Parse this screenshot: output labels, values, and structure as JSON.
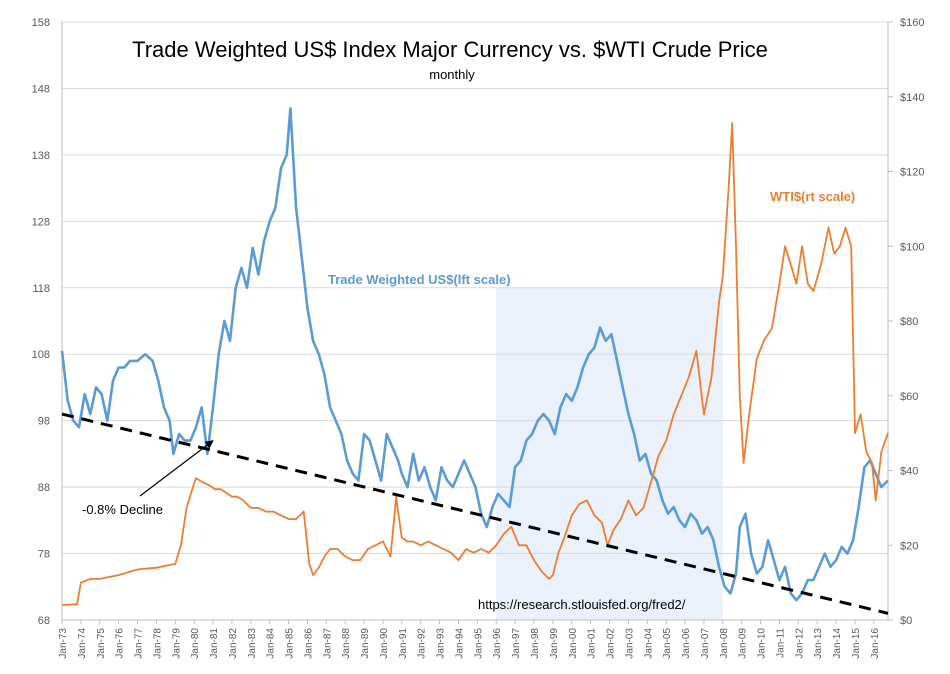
{
  "chart_data": {
    "type": "line",
    "title": "Trade Weighted US$ Index Major Currency vs. $WTI Crude Price",
    "subtitle": "monthly",
    "left_axis": {
      "ylim": [
        68,
        158
      ],
      "ticks": [
        "68",
        "78",
        "88",
        "98",
        "108",
        "118",
        "128",
        "138",
        "148",
        "158"
      ]
    },
    "right_axis": {
      "ylim": [
        0,
        160
      ],
      "ticks": [
        "$0",
        "$20",
        "$40",
        "$60",
        "$80",
        "$100",
        "$120",
        "$140",
        "$160"
      ]
    },
    "x_axis": {
      "xlim": [
        1973.0,
        2016.75
      ],
      "ticks": [
        "Jan-73",
        "Jan-74",
        "Jan-75",
        "Jan-76",
        "Jan-77",
        "Jan-78",
        "Jan-79",
        "Jan-80",
        "Jan-81",
        "Jan-82",
        "Jan-83",
        "Jan-84",
        "Jan-85",
        "Jan-86",
        "Jan-87",
        "Jan-88",
        "Jan-89",
        "Jan-90",
        "Jan-91",
        "Jan-92",
        "Jan-93",
        "Jan-94",
        "Jan-95",
        "Jan-96",
        "Jan-97",
        "Jan-98",
        "Jan-99",
        "Jan-00",
        "Jan-01",
        "Jan-02",
        "Jan-03",
        "Jan-04",
        "Jan-05",
        "Jan-06",
        "Jan-07",
        "Jan-08",
        "Jan-09",
        "Jan-10",
        "Jan-11",
        "Jan-12",
        "Jan-13",
        "Jan-14",
        "Jan-15",
        "Jan-16"
      ]
    },
    "grid": "horizontal",
    "shaded_region": {
      "x": [
        1996.0,
        2008.0
      ],
      "color": "#eaf1fa"
    },
    "trendline": {
      "axis": "left",
      "from": [
        1973.0,
        99.0
      ],
      "to": [
        2016.75,
        69.0
      ],
      "color": "#000000",
      "style": "dashed"
    },
    "series": [
      {
        "name": "Trade Weighted US$(lft scale)",
        "axis": "left",
        "color": "#5b9bd5",
        "x": [
          1973.0,
          1973.3,
          1973.6,
          1973.9,
          1974.2,
          1974.5,
          1974.8,
          1975.1,
          1975.4,
          1975.7,
          1976.0,
          1976.3,
          1976.6,
          1977.0,
          1977.4,
          1977.8,
          1978.1,
          1978.4,
          1978.7,
          1978.9,
          1979.2,
          1979.5,
          1979.8,
          1980.1,
          1980.4,
          1980.7,
          1981.0,
          1981.3,
          1981.6,
          1981.9,
          1982.2,
          1982.5,
          1982.8,
          1983.1,
          1983.4,
          1983.7,
          1984.0,
          1984.3,
          1984.6,
          1984.9,
          1985.1,
          1985.2,
          1985.4,
          1985.6,
          1985.8,
          1986.0,
          1986.3,
          1986.6,
          1986.9,
          1987.2,
          1987.5,
          1987.8,
          1988.1,
          1988.4,
          1988.7,
          1989.0,
          1989.3,
          1989.6,
          1989.9,
          1990.2,
          1990.5,
          1990.8,
          1991.0,
          1991.3,
          1991.6,
          1991.9,
          1992.2,
          1992.5,
          1992.8,
          1993.1,
          1993.4,
          1993.7,
          1994.0,
          1994.3,
          1994.6,
          1994.9,
          1995.2,
          1995.5,
          1995.8,
          1996.1,
          1996.4,
          1996.7,
          1997.0,
          1997.3,
          1997.6,
          1997.9,
          1998.2,
          1998.5,
          1998.8,
          1999.1,
          1999.4,
          1999.7,
          2000.0,
          2000.3,
          2000.6,
          2000.9,
          2001.2,
          2001.5,
          2001.8,
          2002.1,
          2002.4,
          2002.7,
          2003.0,
          2003.3,
          2003.6,
          2003.9,
          2004.2,
          2004.5,
          2004.8,
          2005.1,
          2005.4,
          2005.7,
          2006.0,
          2006.3,
          2006.6,
          2006.9,
          2007.2,
          2007.5,
          2007.8,
          2008.1,
          2008.4,
          2008.7,
          2008.9,
          2009.2,
          2009.5,
          2009.8,
          2010.1,
          2010.4,
          2010.7,
          2011.0,
          2011.3,
          2011.6,
          2011.9,
          2012.2,
          2012.5,
          2012.8,
          2013.1,
          2013.4,
          2013.7,
          2014.0,
          2014.3,
          2014.6,
          2014.9,
          2015.2,
          2015.5,
          2015.8,
          2016.1,
          2016.4,
          2016.75
        ],
        "y": [
          108.5,
          101,
          98,
          97,
          102,
          99,
          103,
          102,
          98,
          104,
          106,
          106,
          107,
          107,
          108,
          107,
          104,
          100,
          98,
          93,
          96,
          95,
          95,
          97,
          100,
          93,
          100,
          108,
          113,
          110,
          118,
          121,
          118,
          124,
          120,
          125,
          128,
          130,
          136,
          138,
          145,
          140,
          130,
          125,
          120,
          115,
          110,
          108,
          105,
          100,
          98,
          96,
          92,
          90,
          89,
          96,
          95,
          92,
          89,
          96,
          94,
          92,
          90,
          88,
          93,
          89,
          91,
          88,
          86,
          91,
          89,
          88,
          90,
          92,
          90,
          88,
          84,
          82,
          85,
          87,
          86,
          85,
          91,
          92,
          95,
          96,
          98,
          99,
          98,
          96,
          100,
          102,
          101,
          103,
          106,
          108,
          109,
          112,
          110,
          111,
          107,
          103,
          99,
          96,
          92,
          93,
          90,
          89,
          86,
          84,
          85,
          83,
          82,
          84,
          83,
          81,
          82,
          80,
          76,
          73,
          72,
          75,
          82,
          84,
          78,
          75,
          76,
          80,
          77,
          74,
          76,
          72,
          71,
          72,
          74,
          74,
          76,
          78,
          76,
          77,
          79,
          78,
          80,
          85,
          91,
          92,
          90,
          88,
          89
        ]
      },
      {
        "name": "WTI$(rt scale)",
        "axis": "right",
        "color": "#ed7d31",
        "x": [
          1973.0,
          1973.8,
          1974.0,
          1974.5,
          1975.0,
          1976.0,
          1977.0,
          1978.0,
          1978.5,
          1979.0,
          1979.3,
          1979.6,
          1979.9,
          1980.1,
          1980.4,
          1980.8,
          1981.1,
          1981.4,
          1981.7,
          1982.0,
          1982.3,
          1982.6,
          1983.0,
          1983.4,
          1983.8,
          1984.2,
          1984.6,
          1985.0,
          1985.4,
          1985.8,
          1986.1,
          1986.3,
          1986.6,
          1986.9,
          1987.2,
          1987.6,
          1988.0,
          1988.4,
          1988.8,
          1989.2,
          1989.6,
          1990.0,
          1990.4,
          1990.7,
          1990.8,
          1991.0,
          1991.3,
          1991.6,
          1992.0,
          1992.4,
          1992.8,
          1993.2,
          1993.6,
          1994.0,
          1994.4,
          1994.8,
          1995.2,
          1995.6,
          1996.0,
          1996.4,
          1996.8,
          1997.2,
          1997.6,
          1998.0,
          1998.4,
          1998.8,
          1999.0,
          1999.3,
          1999.6,
          2000.0,
          2000.4,
          2000.8,
          2001.2,
          2001.6,
          2001.9,
          2002.2,
          2002.6,
          2003.0,
          2003.4,
          2003.8,
          2004.2,
          2004.6,
          2005.0,
          2005.4,
          2005.8,
          2006.2,
          2006.6,
          2007.0,
          2007.4,
          2007.8,
          2008.0,
          2008.3,
          2008.5,
          2008.7,
          2008.9,
          2009.1,
          2009.4,
          2009.8,
          2010.2,
          2010.6,
          2011.0,
          2011.3,
          2011.6,
          2011.9,
          2012.2,
          2012.5,
          2012.8,
          2013.2,
          2013.6,
          2013.9,
          2014.2,
          2014.5,
          2014.8,
          2015.0,
          2015.3,
          2015.6,
          2015.9,
          2016.1,
          2016.4,
          2016.75
        ],
        "y": [
          4,
          4.2,
          10,
          11,
          11,
          12,
          13.5,
          14,
          14.5,
          15,
          20,
          30,
          35,
          38,
          37,
          36,
          35,
          35,
          34,
          33,
          33,
          32,
          30,
          30,
          29,
          29,
          28,
          27,
          27,
          29,
          15,
          12,
          14,
          17,
          19,
          19,
          17,
          16,
          16,
          19,
          20,
          21,
          17,
          33,
          29,
          22,
          21,
          21,
          20,
          21,
          20,
          19,
          18,
          16,
          19,
          18,
          19,
          18,
          20,
          23,
          25,
          20,
          20,
          16,
          13,
          11,
          12,
          18,
          22,
          28,
          31,
          32,
          28,
          26,
          20,
          24,
          27,
          32,
          28,
          30,
          37,
          44,
          48,
          55,
          60,
          65,
          72,
          55,
          65,
          85,
          92,
          115,
          133,
          100,
          60,
          42,
          55,
          70,
          75,
          78,
          90,
          100,
          95,
          90,
          100,
          90,
          88,
          95,
          105,
          98,
          100,
          105,
          100,
          50,
          55,
          45,
          42,
          32,
          45,
          50
        ]
      }
    ],
    "annotations": [
      {
        "text": "-0.8% Decline",
        "arrow_to": [
          1981.0,
          95.0
        ]
      },
      {
        "text": "https://research.stlouisfed.org/fred2/"
      }
    ]
  }
}
